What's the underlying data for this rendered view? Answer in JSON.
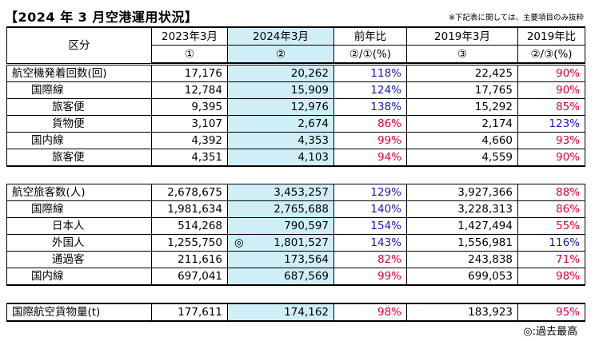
{
  "title": "【2024 年 3 月空港運用状況】",
  "note": "※下記表に関しては、主要項目のみ抜粋",
  "footnote": "◎:過去最高",
  "header": {
    "category": "区分",
    "col1": {
      "label": "2023年3月",
      "sub": "①"
    },
    "col2": {
      "label": "2024年3月",
      "sub": "②"
    },
    "col3": {
      "label": "前年比",
      "sub": "②/①(%)"
    },
    "col4": {
      "label": "2019年3月",
      "sub": "③"
    },
    "col5": {
      "label": "2019年比",
      "sub": "②/③(%)"
    }
  },
  "aircraft": [
    {
      "label": "航空機発着回数(回)",
      "v2023": "17,176",
      "v2024": "20,262",
      "yoy": "118%",
      "v2019": "22,425",
      "vs2019": "90%"
    },
    {
      "label": "国際線",
      "v2023": "12,784",
      "v2024": "15,909",
      "yoy": "124%",
      "v2019": "17,765",
      "vs2019": "90%"
    },
    {
      "label": "旅客便",
      "v2023": "9,395",
      "v2024": "12,976",
      "yoy": "138%",
      "v2019": "15,292",
      "vs2019": "85%"
    },
    {
      "label": "貨物便",
      "v2023": "3,107",
      "v2024": "2,674",
      "yoy": "86%",
      "v2019": "2,174",
      "vs2019": "123%"
    },
    {
      "label": "国内線",
      "v2023": "4,392",
      "v2024": "4,353",
      "yoy": "99%",
      "v2019": "4,660",
      "vs2019": "93%"
    },
    {
      "label": "旅客便",
      "v2023": "4,351",
      "v2024": "4,103",
      "yoy": "94%",
      "v2019": "4,559",
      "vs2019": "90%"
    }
  ],
  "passengers": [
    {
      "label": "航空旅客数(人)",
      "v2023": "2,678,675",
      "v2024": "3,453,257",
      "yoy": "129%",
      "v2019": "3,927,366",
      "vs2019": "88%"
    },
    {
      "label": "国際線",
      "v2023": "1,981,634",
      "v2024": "2,765,688",
      "yoy": "140%",
      "v2019": "3,228,313",
      "vs2019": "86%"
    },
    {
      "label": "日本人",
      "v2023": "514,268",
      "v2024": "790,597",
      "yoy": "154%",
      "v2019": "1,427,494",
      "vs2019": "55%"
    },
    {
      "label": "外国人",
      "v2023": "1,255,750",
      "mark": "◎",
      "v2024": "1,801,527",
      "yoy": "143%",
      "v2019": "1,556,981",
      "vs2019": "116%"
    },
    {
      "label": "通過客",
      "v2023": "211,616",
      "v2024": "173,564",
      "yoy": "82%",
      "v2019": "243,838",
      "vs2019": "71%"
    },
    {
      "label": "国内線",
      "v2023": "697,041",
      "v2024": "687,569",
      "yoy": "99%",
      "v2019": "699,053",
      "vs2019": "98%"
    }
  ],
  "cargo": {
    "label": "国際航空貨物量(t)",
    "v2023": "177,611",
    "v2024": "174,162",
    "yoy": "98%",
    "v2019": "183,923",
    "vs2019": "95%"
  },
  "colors": {
    "highlight": "#cfeef8",
    "increase": "#1a1aa6",
    "decrease": "#e0003c"
  }
}
